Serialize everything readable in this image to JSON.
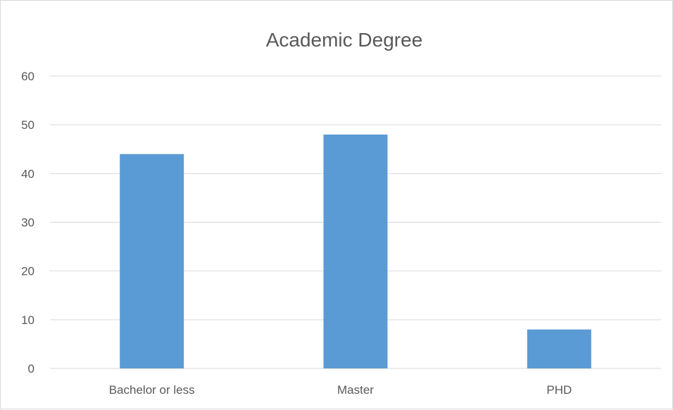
{
  "chart_data": {
    "type": "bar",
    "title": "Academic Degree",
    "xlabel": "",
    "ylabel": "",
    "categories": [
      "Bachelor or less",
      "Master",
      "PHD"
    ],
    "values": [
      44,
      48,
      8
    ],
    "ylim": [
      0,
      60
    ],
    "yticks": [
      "0",
      "10",
      "20",
      "30",
      "40",
      "50",
      "60"
    ],
    "grid": true,
    "legend": "none",
    "bar_color": "#5b9bd5"
  }
}
